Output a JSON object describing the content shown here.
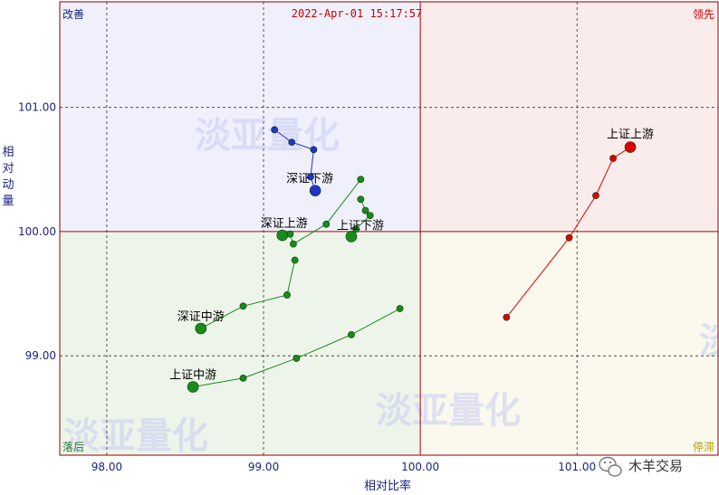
{
  "chart_data": {
    "type": "scatter",
    "subtype": "relative-rotation-graph",
    "timestamp": "2022-Apr-01 15:17:57",
    "xlabel": "相对比率",
    "ylabel": "相对动量",
    "xlim": [
      97.7,
      101.9
    ],
    "ylim": [
      98.2,
      101.85
    ],
    "x_ticks": [
      "98.00",
      "99.00",
      "100.00",
      "101.00"
    ],
    "x_tick_values": [
      98,
      99,
      100,
      101
    ],
    "y_ticks": [
      "99.00",
      "100.00",
      "101.00"
    ],
    "y_tick_values": [
      99,
      100,
      101
    ],
    "grid": true,
    "center": {
      "x": 100,
      "y": 100
    },
    "quadrants": {
      "top_left": "改善",
      "top_right": "领先",
      "bottom_left": "落后",
      "bottom_right": "停滞"
    },
    "quadrant_colors": {
      "top_left": "#eff0fb",
      "top_right": "#fbecec",
      "bottom_left": "#edf5ea",
      "bottom_right": "#fbf8ee"
    },
    "quadrant_label_colors": {
      "top_left": "#1a237e",
      "top_right": "#cc0000",
      "bottom_left": "#2e7d32",
      "bottom_right": "#b8a000"
    },
    "watermarks": [
      "淡亚量化",
      "淡亚量化",
      "淡亚量化",
      "淡"
    ],
    "series": [
      {
        "name": "上证上游",
        "color": "#e00000",
        "x": [
          100.55,
          100.95,
          101.12,
          101.23,
          101.34
        ],
        "y": [
          99.31,
          99.95,
          100.29,
          100.59,
          100.68
        ]
      },
      {
        "name": "深证下游",
        "color": "#2233cc",
        "x": [
          99.07,
          99.18,
          99.32,
          99.3,
          99.33
        ],
        "y": [
          100.82,
          100.72,
          100.66,
          100.44,
          100.33
        ]
      },
      {
        "name": "深证上游",
        "color": "#1a8a1a",
        "x": [
          99.62,
          99.4,
          99.19,
          99.17,
          99.12
        ],
        "y": [
          100.42,
          100.06,
          99.9,
          99.98,
          99.97
        ]
      },
      {
        "name": "上证下游",
        "color": "#1a8a1a",
        "x": [
          99.62,
          99.65,
          99.68,
          99.59,
          99.56
        ],
        "y": [
          100.26,
          100.17,
          100.13,
          100.02,
          99.96
        ]
      },
      {
        "name": "深证中游",
        "color": "#1a8a1a",
        "x": [
          99.2,
          99.15,
          98.87,
          98.6
        ],
        "y": [
          99.77,
          99.49,
          99.4,
          99.22
        ]
      },
      {
        "name": "上证中游",
        "color": "#1a8a1a",
        "x": [
          99.87,
          99.56,
          99.21,
          98.87,
          98.55
        ],
        "y": [
          99.38,
          99.17,
          98.98,
          98.82,
          98.75
        ]
      }
    ]
  },
  "badge": {
    "text": "木羊交易",
    "icon": "wechat-icon"
  }
}
